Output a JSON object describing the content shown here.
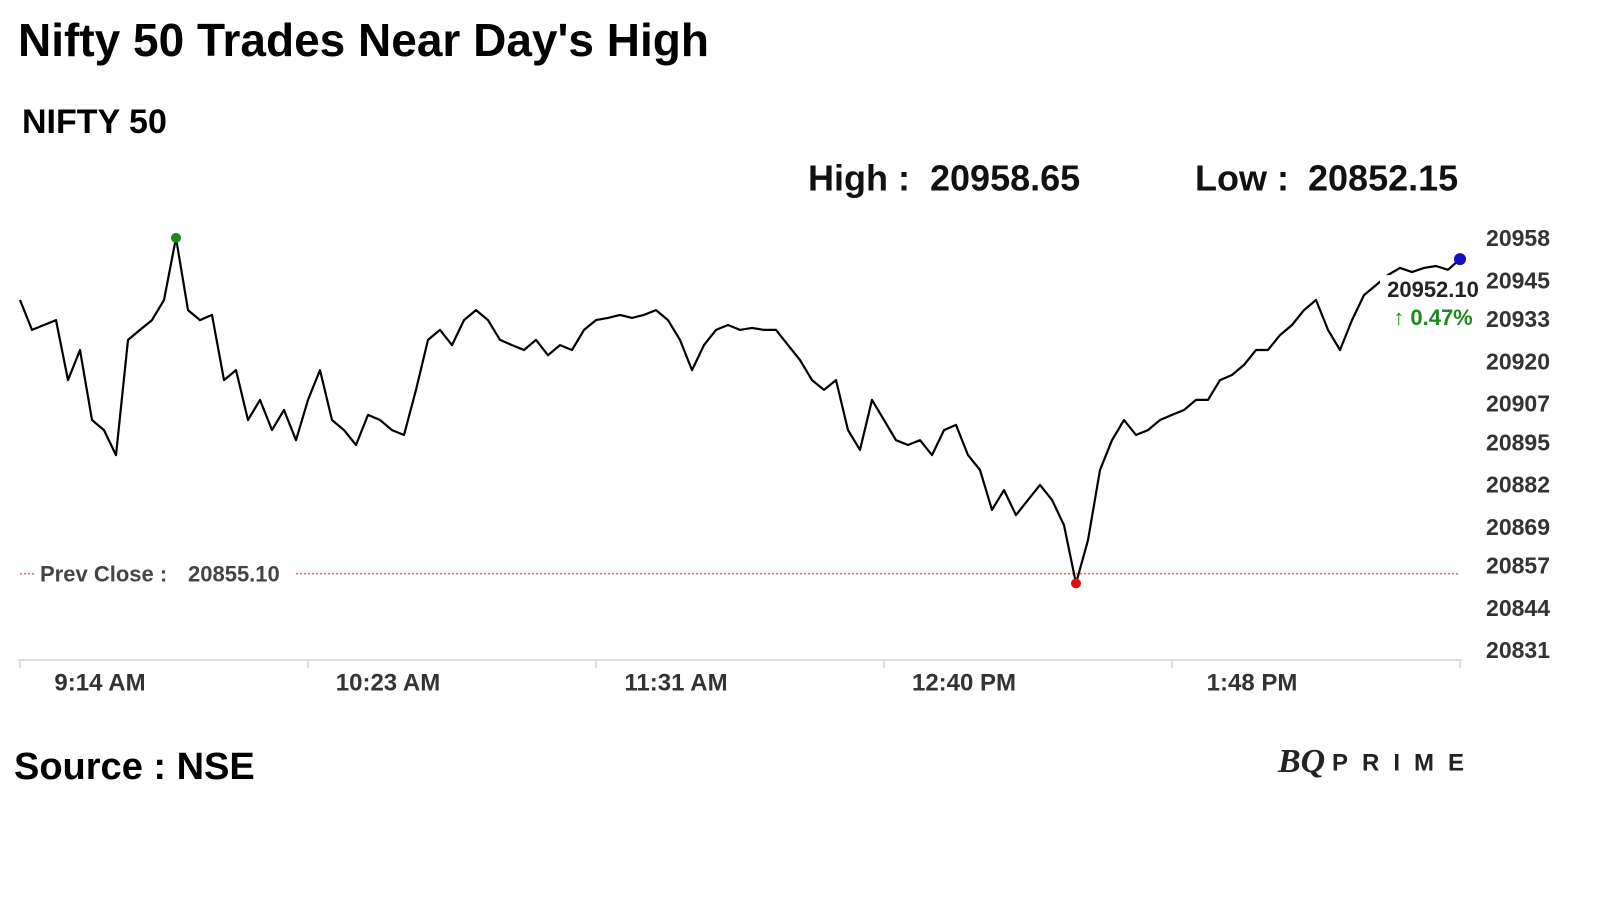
{
  "chart_data": {
    "type": "line",
    "title": "Nifty 50 Trades Near Day's High",
    "subtitle": "NIFTY 50",
    "stats": [
      {
        "label": "High :",
        "value": 20958.65
      },
      {
        "label": "Low :",
        "value": 20852.15
      }
    ],
    "prev_close": {
      "label": "Prev Close :",
      "value": 20855.1,
      "value_label": "20855.10",
      "color": "#e03030"
    },
    "last_label": "20952.10",
    "change_label": "↑ 0.47%",
    "change_color": "#1a8a1a",
    "high_color": "#1a8a1a",
    "low_color": "#e01010",
    "last_color": "#1010c0",
    "source": "Source : NSE",
    "brand": [
      "BQ",
      "PRIME"
    ],
    "categories": [
      "9:14 AM",
      null,
      null,
      null,
      null,
      null,
      null,
      null,
      null,
      null,
      null,
      null,
      null,
      null,
      null,
      null,
      null,
      null,
      null,
      null,
      null,
      null,
      null,
      null,
      "10:23 AM",
      null,
      null,
      null,
      null,
      null,
      null,
      null,
      null,
      null,
      null,
      null,
      null,
      null,
      null,
      null,
      null,
      null,
      null,
      null,
      null,
      null,
      null,
      null,
      "11:31 AM",
      null,
      null,
      null,
      null,
      null,
      null,
      null,
      null,
      null,
      null,
      null,
      null,
      null,
      null,
      null,
      null,
      null,
      null,
      null,
      null,
      null,
      null,
      null,
      "12:40 PM",
      null,
      null,
      null,
      null,
      null,
      null,
      null,
      null,
      null,
      null,
      null,
      null,
      null,
      null,
      null,
      null,
      null,
      null,
      null,
      null,
      null,
      null,
      null,
      "1:48 PM",
      null,
      null,
      null,
      null,
      null,
      null,
      null,
      null,
      null,
      null,
      null,
      null,
      null,
      null,
      null,
      null,
      null,
      null,
      null,
      null,
      null,
      null,
      null,
      null
    ],
    "series": [
      {
        "name": "NIFTY 50",
        "color": "#000000",
        "values": [
          20939.5,
          20930.3,
          20931.8,
          20933.3,
          20914.8,
          20924.1,
          20902.5,
          20899.4,
          20891.7,
          20927.2,
          20930.3,
          20933.3,
          20939.5,
          20958.65,
          20936.4,
          20933.3,
          20934.9,
          20914.8,
          20917.9,
          20902.5,
          20908.7,
          20899.4,
          20905.6,
          20896.3,
          20908.7,
          20917.9,
          20902.5,
          20899.4,
          20894.8,
          20904.1,
          20902.5,
          20899.4,
          20897.9,
          20911.8,
          20927.2,
          20930.3,
          20925.6,
          20933.3,
          20936.4,
          20933.3,
          20927.2,
          20925.6,
          20924.1,
          20927.2,
          20922.5,
          20925.6,
          20924.1,
          20930.3,
          20933.3,
          20934.0,
          20934.9,
          20934.0,
          20934.9,
          20936.4,
          20933.3,
          20927.2,
          20917.9,
          20925.6,
          20930.3,
          20931.8,
          20930.3,
          20930.9,
          20930.3,
          20930.3,
          20925.6,
          20921.0,
          20914.8,
          20911.8,
          20914.8,
          20899.4,
          20893.3,
          20908.7,
          20902.5,
          20896.3,
          20894.8,
          20896.3,
          20891.7,
          20899.4,
          20901.0,
          20891.7,
          20887.1,
          20874.8,
          20880.9,
          20873.2,
          20877.9,
          20882.5,
          20877.9,
          20870.1,
          20852.15,
          20865.5,
          20887.1,
          20896.3,
          20902.5,
          20897.9,
          20899.4,
          20902.5,
          20904.1,
          20905.6,
          20908.7,
          20908.7,
          20914.8,
          20916.4,
          20919.5,
          20924.1,
          20924.1,
          20928.7,
          20931.8,
          20936.4,
          20939.5,
          20930.3,
          20924.1,
          20933.3,
          20941.0,
          20944.1,
          20947.2,
          20949.4,
          20948.1,
          20949.4,
          20950.0,
          20948.8,
          20952.1
        ]
      }
    ],
    "ylim": [
      20831,
      20958
    ],
    "yticks": [
      20958,
      20945,
      20933,
      20920,
      20907,
      20895,
      20882,
      20869,
      20857,
      20844,
      20831
    ]
  }
}
